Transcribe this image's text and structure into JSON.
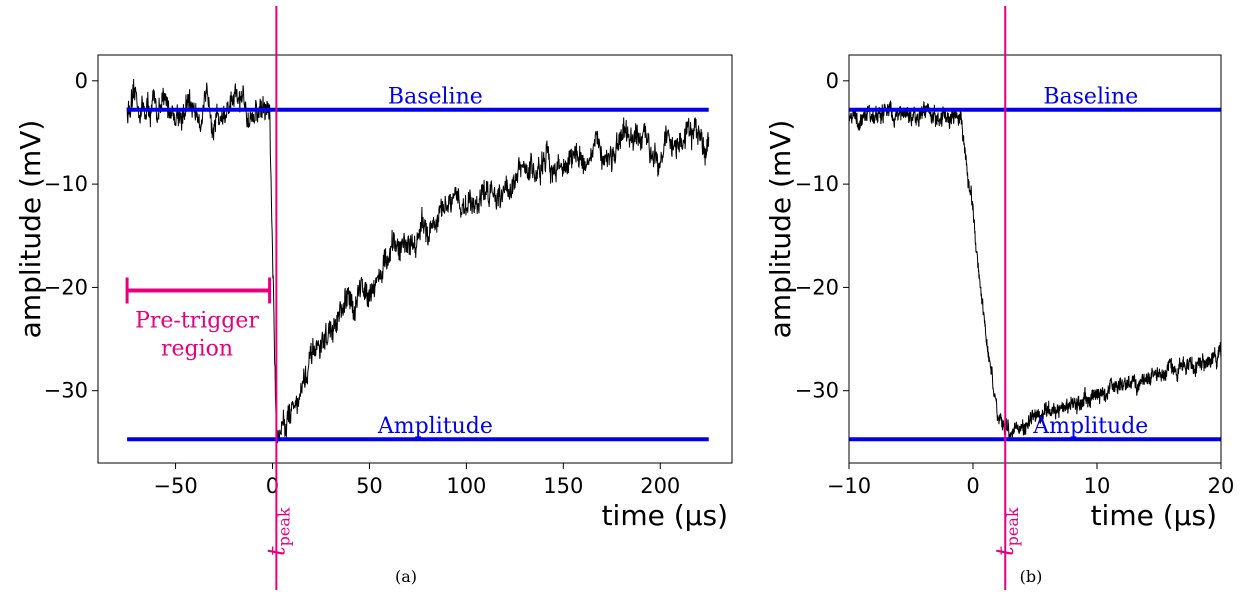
{
  "chart_data": [
    {
      "type": "line",
      "caption": "(a)",
      "xlabel": "time (µs)",
      "ylabel": "amplitude (mV)",
      "xlim": [
        -90,
        237
      ],
      "ylim": [
        -37,
        2.5
      ],
      "xticks": [
        -50,
        0,
        50,
        100,
        150,
        200
      ],
      "yticks": [
        0,
        -10,
        -20,
        -30
      ],
      "xtick_labels": [
        "−50",
        "0",
        "50",
        "100",
        "150",
        "200"
      ],
      "ytick_labels": [
        "0",
        "−10",
        "−20",
        "−30"
      ],
      "colors": {
        "signal": "#000000",
        "level": "#0000ee",
        "marker": "#e6007e"
      },
      "signal": {
        "t_start": -75,
        "t_end": 225,
        "baseline_mv": -2.8,
        "trigger_us": -1.5,
        "peak_us": 2,
        "peak_mv": -34.5,
        "tail_end_mv": -5.5,
        "noise_mv": 1.2
      },
      "levels": [
        {
          "label": "Baseline",
          "y": -2.8,
          "x_range": [
            -75,
            225
          ]
        },
        {
          "label": "Amplitude",
          "y": -34.7,
          "x_range": [
            -75,
            225
          ]
        }
      ],
      "marker": {
        "label": "t",
        "sub": "peak",
        "x": 2
      },
      "region": {
        "label_line1": "Pre-trigger",
        "label_line2": "region",
        "x_range": [
          -75,
          -1.5
        ],
        "y": -20.3
      }
    },
    {
      "type": "line",
      "caption": "(b)",
      "xlabel": "time (µs)",
      "ylabel": "amplitude (mV)",
      "xlim": [
        -10,
        20
      ],
      "ylim": [
        -37,
        2.5
      ],
      "xticks": [
        -10,
        0,
        10,
        20
      ],
      "yticks": [
        0,
        -10,
        -20,
        -30
      ],
      "xtick_labels": [
        "−10",
        "0",
        "10",
        "20"
      ],
      "ytick_labels": [
        "0",
        "−10",
        "−20",
        "−30"
      ],
      "colors": {
        "signal": "#000000",
        "level": "#0000ee",
        "marker": "#e6007e"
      },
      "signal": {
        "t_start": -10,
        "t_end": 20,
        "baseline_mv": -3.3,
        "trigger_us": -1,
        "peak_us": 2,
        "peak_mv": -34.0,
        "tail_end_mv": -26.5,
        "noise_mv": 0.7
      },
      "levels": [
        {
          "label": "Baseline",
          "y": -2.8,
          "x_range": [
            -10,
            20
          ]
        },
        {
          "label": "Amplitude",
          "y": -34.7,
          "x_range": [
            -10,
            20
          ]
        }
      ],
      "marker": {
        "label": "t",
        "sub": "peak",
        "x": 2.6
      }
    }
  ]
}
